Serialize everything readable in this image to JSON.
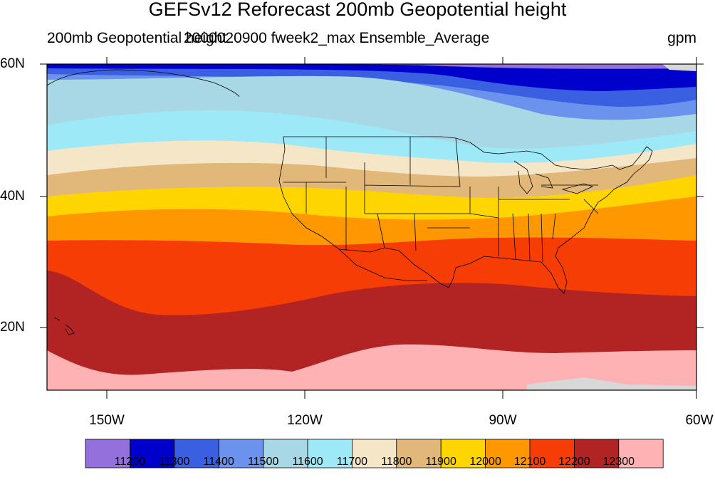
{
  "title": "GEFSv12 Reforecast 200mb Geopotential height",
  "subtitle_left": "200mb Geopotential height",
  "subtitle_center": "2000020900 fweek2_max Ensemble_Average",
  "units": "gpm",
  "map": {
    "lat_labels": [
      "60N",
      "40N",
      "20N"
    ],
    "lon_labels": [
      "150W",
      "120W",
      "90W",
      "60W"
    ],
    "lon_range": [
      -159,
      -60
    ],
    "lat_range": [
      10,
      60
    ]
  },
  "colorbar": {
    "levels": [
      "11200",
      "11300",
      "11400",
      "11500",
      "11600",
      "11700",
      "11800",
      "11900",
      "12000",
      "12100",
      "12200",
      "12300"
    ],
    "colors": [
      "#9370db",
      "#0000cd",
      "#3a5fe0",
      "#6b93ee",
      "#a8d8e6",
      "#9ee9f8",
      "#f5e6c8",
      "#e2b87a",
      "#ffd500",
      "#ff9700",
      "#f53d05",
      "#b22424",
      "#ffb2b4"
    ]
  }
}
